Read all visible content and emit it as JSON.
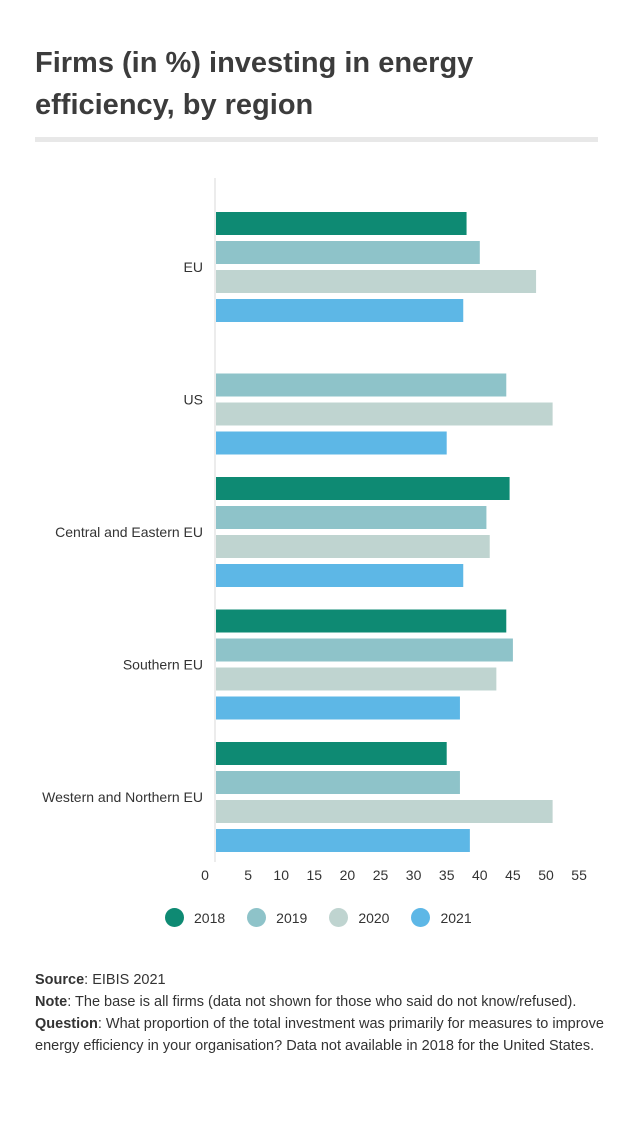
{
  "title": "Firms (in %) investing in energy efficiency, by region",
  "chart_data": {
    "type": "bar",
    "orientation": "horizontal",
    "categories": [
      "EU",
      "US",
      "Central and Eastern EU",
      "Southern EU",
      "Western and Northern EU"
    ],
    "series": [
      {
        "name": "2018",
        "color": "#0e8a73",
        "values": [
          38,
          null,
          44.5,
          44,
          35
        ]
      },
      {
        "name": "2019",
        "color": "#8ec3c9",
        "values": [
          40,
          44,
          41,
          45,
          37
        ]
      },
      {
        "name": "2020",
        "color": "#bfd4d0",
        "values": [
          48.5,
          51,
          41.5,
          42.5,
          51
        ]
      },
      {
        "name": "2021",
        "color": "#5db7e6",
        "values": [
          37.5,
          35,
          37.5,
          37,
          38.5
        ]
      }
    ],
    "xlim": [
      0,
      55
    ],
    "xticks": [
      "0",
      "5",
      "10",
      "15",
      "20",
      "25",
      "30",
      "35",
      "40",
      "45",
      "50",
      "55"
    ],
    "grid": false,
    "legend_position": "bottom"
  },
  "notes": {
    "source_label": "Source",
    "source_text": ": EIBIS 2021",
    "note_label": "Note",
    "note_text": ": The base is all firms (data not shown for those who said do not know/refused).",
    "question_label": "Question",
    "question_text": ": What proportion of the total investment was primarily for measures to improve energy efficiency in your organisation? Data not available in 2018 for the United States."
  }
}
